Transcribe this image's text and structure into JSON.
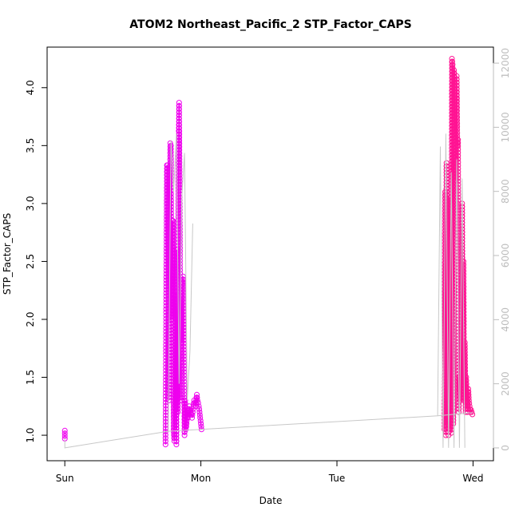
{
  "chart_data": {
    "type": "scatter",
    "title": "ATOM2 Northeast_Pacific_2 STP_Factor_CAPS",
    "xlabel": "Date",
    "ylabel": "STP_Factor_CAPS",
    "x_ticks": [
      {
        "label": "Sun",
        "day": 0
      },
      {
        "label": "Mon",
        "day": 1
      },
      {
        "label": "Tue",
        "day": 2
      },
      {
        "label": "Wed",
        "day": 3
      }
    ],
    "xlim_days": [
      -0.13,
      3.15
    ],
    "y_ticks": [
      1.0,
      1.5,
      2.0,
      2.5,
      3.0,
      3.5,
      4.0
    ],
    "ylim": [
      0.78,
      4.35
    ],
    "y2_ticks": [
      0,
      2000,
      4000,
      6000,
      8000,
      10000,
      12000
    ],
    "y2lim": [
      -400,
      12500
    ],
    "grid": false,
    "series": [
      {
        "color": "#ee00ee",
        "marker": "open-circle",
        "segments": [
          {
            "x": [
              0.0,
              0.0
            ],
            "y": [
              1.04,
              0.97
            ]
          },
          {
            "x": [
              0.74,
              0.745,
              0.75,
              0.755,
              0.76,
              0.765,
              0.77,
              0.775,
              0.78,
              0.785,
              0.79,
              0.795,
              0.8,
              0.805,
              0.81,
              0.815,
              0.82,
              0.825,
              0.83,
              0.835,
              0.84,
              0.845,
              0.85,
              0.855,
              0.86,
              0.865,
              0.87,
              0.875,
              0.88,
              0.885,
              0.89,
              0.895,
              0.9,
              0.905,
              0.91,
              0.915,
              0.92,
              0.925,
              0.93,
              0.935,
              0.94,
              0.945,
              0.95,
              0.955,
              0.96,
              0.965,
              0.97,
              0.975,
              0.98,
              0.985,
              0.99,
              0.995,
              1.0,
              1.005
            ],
            "y": [
              0.92,
              2.2,
              3.33,
              3.33,
              2.4,
              1.3,
              2.9,
              3.52,
              3.5,
              2.0,
              2.85,
              2.85,
              1.05,
              0.95,
              2.2,
              1.4,
              0.92,
              2.6,
              1.2,
              3.3,
              3.87,
              3.0,
              1.3,
              2.2,
              1.8,
              2.3,
              2.37,
              1.6,
              1.0,
              1.3,
              1.05,
              1.1,
              1.2,
              1.15,
              1.2,
              1.25,
              1.22,
              1.2,
              1.18,
              1.15,
              1.2,
              1.25,
              1.3,
              1.28,
              1.25,
              1.3,
              1.35,
              1.3,
              1.28,
              1.25,
              1.2,
              1.15,
              1.1,
              1.05
            ]
          }
        ]
      },
      {
        "color": "#ff1493",
        "marker": "open-circle",
        "segments": [
          {
            "x": [
              2.79,
              2.795,
              2.8,
              2.805,
              2.81,
              2.815,
              2.82,
              2.825,
              2.83,
              2.835,
              2.84,
              2.845,
              2.85,
              2.855,
              2.86,
              2.865,
              2.87,
              2.875,
              2.88,
              2.885,
              2.89,
              2.895,
              2.9,
              2.905,
              2.91,
              2.915,
              2.92,
              2.925,
              2.93,
              2.935,
              2.94,
              2.945,
              2.95,
              2.955,
              2.96,
              2.965,
              2.97,
              2.975,
              2.98,
              2.985,
              2.99,
              2.995
            ],
            "y": [
              1.05,
              3.1,
              1.0,
              3.35,
              1.1,
              2.6,
              1.0,
              2.85,
              1.05,
              3.05,
              1.02,
              4.25,
              4.2,
              1.1,
              4.15,
              4.05,
              3.2,
              3.35,
              4.1,
              3.5,
              3.55,
              1.2,
              1.5,
              1.3,
              2.0,
              1.4,
              3.0,
              1.6,
              2.5,
              1.3,
              1.8,
              1.2,
              1.5,
              1.3,
              1.2,
              1.4,
              1.3,
              1.25,
              1.2,
              1.22,
              1.2,
              1.18
            ]
          }
        ]
      },
      {
        "color": "#c8c8c8",
        "axis": "right",
        "segments": [
          {
            "x": [
              0.0,
              0.0,
              0.76,
              2.74,
              3.0
            ],
            "y": [
              300,
              0,
              520,
              1000,
              1100
            ]
          },
          {
            "x": [
              0.76,
              0.78,
              0.8,
              0.82,
              0.84,
              0.86,
              0.88,
              0.9,
              0.92,
              0.94
            ],
            "y": [
              520,
              9600,
              8000,
              9800,
              2000,
              7800,
              9200,
              1500,
              3000,
              7000
            ]
          },
          {
            "x": [
              2.74,
              2.76,
              2.78,
              2.8,
              2.82,
              2.84,
              2.86,
              2.88,
              2.9,
              2.92,
              2.94
            ],
            "y": [
              1000,
              9400,
              0,
              9800,
              0,
              8600,
              0,
              9000,
              0,
              8400,
              0
            ]
          }
        ]
      }
    ]
  }
}
